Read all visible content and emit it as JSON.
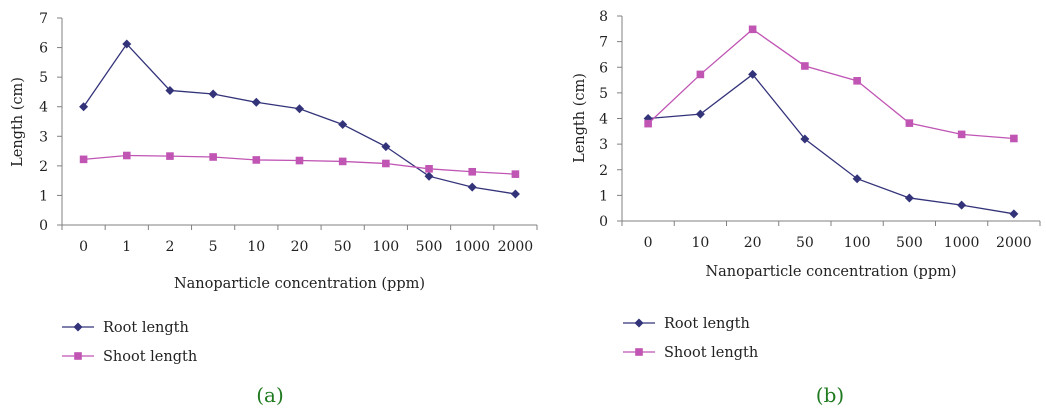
{
  "colors": {
    "root": "#33337a",
    "shoot": "#c055b4",
    "axis": "#808080",
    "panel_label": "#1f7a1f"
  },
  "chart_data": [
    {
      "type": "line",
      "panel_label": "(a)",
      "categories": [
        "0",
        "1",
        "2",
        "5",
        "10",
        "20",
        "50",
        "100",
        "500",
        "1000",
        "2000"
      ],
      "xlabel": "Nanoparticle concentration (ppm)",
      "ylabel": "Length (cm)",
      "ylim": [
        0,
        7
      ],
      "yticks": [
        "0",
        "1",
        "2",
        "3",
        "4",
        "5",
        "6",
        "7"
      ],
      "grid": false,
      "legend_position": "bottom-left",
      "series": [
        {
          "name": "Root length",
          "marker": "diamond",
          "values": [
            4.0,
            6.12,
            4.55,
            4.43,
            4.15,
            3.93,
            3.4,
            2.65,
            1.65,
            1.28,
            1.05
          ]
        },
        {
          "name": "Shoot length",
          "marker": "square",
          "values": [
            2.22,
            2.35,
            2.33,
            2.3,
            2.2,
            2.18,
            2.15,
            2.08,
            1.9,
            1.8,
            1.72
          ]
        }
      ]
    },
    {
      "type": "line",
      "panel_label": "(b)",
      "categories": [
        "0",
        "10",
        "20",
        "50",
        "100",
        "500",
        "1000",
        "2000"
      ],
      "xlabel": "Nanoparticle concentration (ppm)",
      "ylabel": "Length (cm)",
      "ylim": [
        0,
        8
      ],
      "yticks": [
        "0",
        "1",
        "2",
        "3",
        "4",
        "5",
        "6",
        "7",
        "8"
      ],
      "grid": false,
      "legend_position": "bottom-left",
      "series": [
        {
          "name": "Root length",
          "marker": "diamond",
          "values": [
            4.0,
            4.17,
            5.72,
            3.2,
            1.65,
            0.9,
            0.62,
            0.28
          ]
        },
        {
          "name": "Shoot length",
          "marker": "square",
          "values": [
            3.8,
            5.72,
            7.48,
            6.05,
            5.47,
            3.82,
            3.38,
            3.22
          ]
        }
      ]
    }
  ]
}
